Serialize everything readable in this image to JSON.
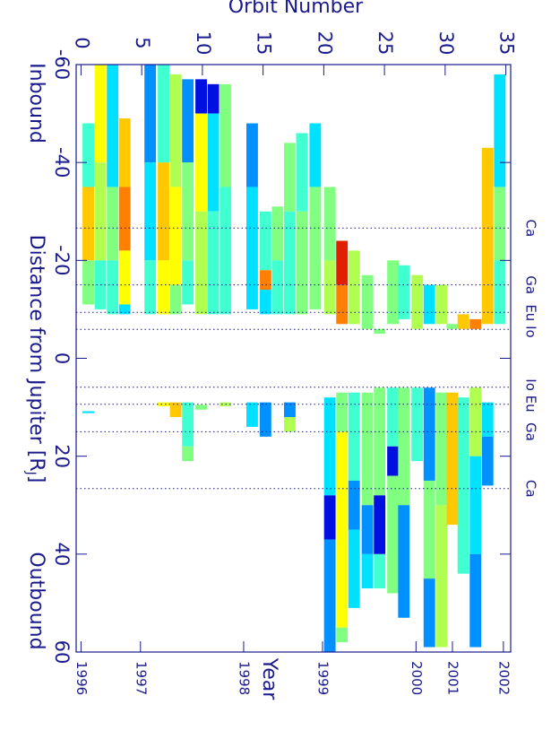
{
  "chart_data": {
    "type": "heatmap",
    "xlabel": "Orbit Number",
    "year_label": "Year",
    "ylabel": "Distance from Jupiter [R",
    "ylabel_sub": "J",
    "ylabel_end": "]",
    "inbound_label": "Inbound",
    "outbound_label": "Outbound",
    "xlim": [
      -0.4,
      35.4
    ],
    "xticks": [
      0,
      5,
      10,
      15,
      20,
      25,
      30,
      35
    ],
    "ylim": [
      -60,
      60
    ],
    "yticks": [
      -60,
      -40,
      -20,
      0,
      20,
      40,
      60
    ],
    "year_ticks": [
      {
        "value": 0,
        "label": "1996"
      },
      {
        "value": 4.9,
        "label": "1997"
      },
      {
        "value": 13.4,
        "label": "1998"
      },
      {
        "value": 19.9,
        "label": "1999"
      },
      {
        "value": 27.6,
        "label": "2000"
      },
      {
        "value": 30.6,
        "label": "2001"
      },
      {
        "value": 34.8,
        "label": "2002"
      }
    ],
    "moon_lines": [
      -26.6,
      -15,
      -9.4,
      -5.9,
      5.9,
      9.4,
      15,
      26.6
    ],
    "moon_labels": [
      {
        "label": "Ca",
        "value": -26.6
      },
      {
        "label": "Ga",
        "value": -15
      },
      {
        "label": "Eu Io",
        "value": -7.6
      },
      {
        "label": "Io Eu",
        "value": 7.6
      },
      {
        "label": "Ga",
        "value": 15
      },
      {
        "label": "Ca",
        "value": 26.6
      }
    ],
    "column_width": 0.95,
    "columns": [
      {
        "orbit": 0.6,
        "segments": [
          {
            "from": -48,
            "to": -35,
            "color": "#40ffd0"
          },
          {
            "from": -35,
            "to": -20,
            "color": "#ffc800"
          },
          {
            "from": -20,
            "to": -11,
            "color": "#80ff80"
          },
          {
            "from": 10.8,
            "to": 11.2,
            "color": "#00e0ff"
          }
        ]
      },
      {
        "orbit": 1.6,
        "segments": [
          {
            "from": -60,
            "to": -40,
            "color": "#ffff00"
          },
          {
            "from": -40,
            "to": -20,
            "color": "#b0ff50"
          },
          {
            "from": -20,
            "to": -10,
            "color": "#40ffd0"
          }
        ]
      },
      {
        "orbit": 2.6,
        "segments": [
          {
            "from": -60,
            "to": -35,
            "color": "#00e0ff"
          },
          {
            "from": -35,
            "to": -20,
            "color": "#80ff80"
          },
          {
            "from": -20,
            "to": -9,
            "color": "#40ffd0"
          }
        ]
      },
      {
        "orbit": 3.6,
        "segments": [
          {
            "from": -49,
            "to": -35,
            "color": "#ffc800"
          },
          {
            "from": -35,
            "to": -22,
            "color": "#ff8000"
          },
          {
            "from": -22,
            "to": -11,
            "color": "#ffff00"
          },
          {
            "from": -11,
            "to": -9,
            "color": "#00e0ff"
          }
        ]
      },
      {
        "orbit": 5.7,
        "segments": [
          {
            "from": -60,
            "to": -40,
            "color": "#0090ff"
          },
          {
            "from": -40,
            "to": -20,
            "color": "#00e0ff"
          },
          {
            "from": -20,
            "to": -9,
            "color": "#40ffd0"
          }
        ]
      },
      {
        "orbit": 6.8,
        "segments": [
          {
            "from": -60,
            "to": -40,
            "color": "#40ffd0"
          },
          {
            "from": -40,
            "to": -20,
            "color": "#ffc800"
          },
          {
            "from": -20,
            "to": -9,
            "color": "#ffff00"
          },
          {
            "from": 9,
            "to": 9.8,
            "color": "#ffff00"
          }
        ]
      },
      {
        "orbit": 7.8,
        "segments": [
          {
            "from": -58,
            "to": -35,
            "color": "#b0ff50"
          },
          {
            "from": -35,
            "to": -15,
            "color": "#ffff00"
          },
          {
            "from": -15,
            "to": -9,
            "color": "#80ff80"
          },
          {
            "from": 9,
            "to": 12,
            "color": "#ffc800"
          }
        ]
      },
      {
        "orbit": 8.8,
        "segments": [
          {
            "from": -57,
            "to": -40,
            "color": "#0090ff"
          },
          {
            "from": -40,
            "to": -20,
            "color": "#80ff80"
          },
          {
            "from": -20,
            "to": -11,
            "color": "#40ffd0"
          },
          {
            "from": 9,
            "to": 18,
            "color": "#40ffd0"
          },
          {
            "from": 18,
            "to": 21,
            "color": "#80ff80"
          }
        ]
      },
      {
        "orbit": 9.9,
        "segments": [
          {
            "from": -57,
            "to": -50,
            "color": "#0010e0"
          },
          {
            "from": -50,
            "to": -30,
            "color": "#ffff00"
          },
          {
            "from": -30,
            "to": -9,
            "color": "#b0ff50"
          },
          {
            "from": 9.5,
            "to": 10.5,
            "color": "#80ff80"
          }
        ]
      },
      {
        "orbit": 10.9,
        "segments": [
          {
            "from": -56,
            "to": -50,
            "color": "#0010e0"
          },
          {
            "from": -50,
            "to": -30,
            "color": "#00e0ff"
          },
          {
            "from": -30,
            "to": -9,
            "color": "#40ffd0"
          }
        ]
      },
      {
        "orbit": 11.9,
        "segments": [
          {
            "from": -56,
            "to": -35,
            "color": "#80ff80"
          },
          {
            "from": -35,
            "to": -9,
            "color": "#40ffd0"
          },
          {
            "from": 9,
            "to": 9.8,
            "color": "#b0ff50"
          }
        ]
      },
      {
        "orbit": 14.1,
        "segments": [
          {
            "from": -48,
            "to": -35,
            "color": "#0090ff"
          },
          {
            "from": -35,
            "to": -10,
            "color": "#00e0ff"
          },
          {
            "from": 9,
            "to": 14,
            "color": "#00e0ff"
          }
        ]
      },
      {
        "orbit": 15.2,
        "segments": [
          {
            "from": -30,
            "to": -18,
            "color": "#40ffd0"
          },
          {
            "from": -18,
            "to": -14,
            "color": "#ff8000"
          },
          {
            "from": -14,
            "to": -9,
            "color": "#00e0ff"
          },
          {
            "from": 9,
            "to": 16,
            "color": "#0090ff"
          }
        ]
      },
      {
        "orbit": 16.2,
        "segments": [
          {
            "from": -31,
            "to": -20,
            "color": "#80ff80"
          },
          {
            "from": -20,
            "to": -9,
            "color": "#40ffd0"
          }
        ]
      },
      {
        "orbit": 17.2,
        "segments": [
          {
            "from": -44,
            "to": -30,
            "color": "#80ff80"
          },
          {
            "from": -30,
            "to": -9,
            "color": "#40ffd0"
          },
          {
            "from": 9,
            "to": 12,
            "color": "#0090ff"
          },
          {
            "from": 12,
            "to": 15,
            "color": "#b0ff50"
          }
        ]
      },
      {
        "orbit": 18.2,
        "segments": [
          {
            "from": -46,
            "to": -30,
            "color": "#40ffd0"
          },
          {
            "from": -30,
            "to": -9,
            "color": "#80ff80"
          }
        ]
      },
      {
        "orbit": 19.3,
        "segments": [
          {
            "from": -48,
            "to": -35,
            "color": "#00e0ff"
          },
          {
            "from": -35,
            "to": -10,
            "color": "#80ff80"
          }
        ]
      },
      {
        "orbit": 20.5,
        "segments": [
          {
            "from": -35,
            "to": -20,
            "color": "#80ff80"
          },
          {
            "from": -20,
            "to": -9,
            "color": "#b0ff50"
          },
          {
            "from": 8,
            "to": 28,
            "color": "#00e0ff"
          },
          {
            "from": 28,
            "to": 37,
            "color": "#0010e0"
          },
          {
            "from": 37,
            "to": 60,
            "color": "#0090ff"
          }
        ]
      },
      {
        "orbit": 21.5,
        "segments": [
          {
            "from": -24,
            "to": -15,
            "color": "#e02000"
          },
          {
            "from": -15,
            "to": -7,
            "color": "#ff8000"
          },
          {
            "from": 7,
            "to": 15,
            "color": "#80ff80"
          },
          {
            "from": 15,
            "to": 55,
            "color": "#ffff00"
          },
          {
            "from": 55,
            "to": 58,
            "color": "#80ff80"
          }
        ]
      },
      {
        "orbit": 22.5,
        "segments": [
          {
            "from": -22,
            "to": -7,
            "color": "#b0ff50"
          },
          {
            "from": 7,
            "to": 25,
            "color": "#40ffd0"
          },
          {
            "from": 25,
            "to": 35,
            "color": "#0090ff"
          },
          {
            "from": 35,
            "to": 51,
            "color": "#00e0ff"
          }
        ]
      },
      {
        "orbit": 23.6,
        "segments": [
          {
            "from": -17,
            "to": -6,
            "color": "#80ff80"
          },
          {
            "from": 7,
            "to": 30,
            "color": "#80ff80"
          },
          {
            "from": 30,
            "to": 40,
            "color": "#0090ff"
          },
          {
            "from": 40,
            "to": 47,
            "color": "#00e0ff"
          }
        ]
      },
      {
        "orbit": 24.6,
        "segments": [
          {
            "from": -6,
            "to": -5,
            "color": "#80ff80"
          },
          {
            "from": 6,
            "to": 28,
            "color": "#80ff80"
          },
          {
            "from": 28,
            "to": 40,
            "color": "#0010e0"
          },
          {
            "from": 40,
            "to": 47,
            "color": "#40ffd0"
          }
        ]
      },
      {
        "orbit": 25.7,
        "segments": [
          {
            "from": -20,
            "to": -7,
            "color": "#80ff80"
          },
          {
            "from": 6,
            "to": 18,
            "color": "#40ffd0"
          },
          {
            "from": 18,
            "to": 24,
            "color": "#0010e0"
          },
          {
            "from": 24,
            "to": 48,
            "color": "#80ff80"
          }
        ]
      },
      {
        "orbit": 26.6,
        "segments": [
          {
            "from": -19,
            "to": -8,
            "color": "#40ffd0"
          },
          {
            "from": 6,
            "to": 30,
            "color": "#80ff80"
          },
          {
            "from": 30,
            "to": 53,
            "color": "#0090ff"
          }
        ]
      },
      {
        "orbit": 27.7,
        "segments": [
          {
            "from": -17,
            "to": -6,
            "color": "#b0ff50"
          },
          {
            "from": 6,
            "to": 21,
            "color": "#40ffd0"
          }
        ]
      },
      {
        "orbit": 28.7,
        "segments": [
          {
            "from": -15,
            "to": -7,
            "color": "#00e0ff"
          },
          {
            "from": 6,
            "to": 25,
            "color": "#0090ff"
          },
          {
            "from": 25,
            "to": 45,
            "color": "#80ff80"
          },
          {
            "from": 45,
            "to": 59,
            "color": "#0090ff"
          }
        ]
      },
      {
        "orbit": 29.7,
        "segments": [
          {
            "from": -15,
            "to": -7,
            "color": "#b0ff50"
          },
          {
            "from": 7,
            "to": 30,
            "color": "#80ff80"
          },
          {
            "from": 30,
            "to": 59,
            "color": "#b0ff50"
          }
        ]
      },
      {
        "orbit": 30.6,
        "segments": [
          {
            "from": -7,
            "to": -6,
            "color": "#80ff80"
          },
          {
            "from": 7,
            "to": 34,
            "color": "#ffc800"
          }
        ]
      },
      {
        "orbit": 31.5,
        "segments": [
          {
            "from": -9,
            "to": -6,
            "color": "#ffc800"
          },
          {
            "from": 8,
            "to": 44,
            "color": "#40ffd0"
          }
        ]
      },
      {
        "orbit": 32.5,
        "segments": [
          {
            "from": -8,
            "to": -6,
            "color": "#ff8000"
          },
          {
            "from": 6,
            "to": 20,
            "color": "#b0ff50"
          },
          {
            "from": 20,
            "to": 40,
            "color": "#00e0ff"
          },
          {
            "from": 40,
            "to": 59,
            "color": "#0090ff"
          }
        ]
      },
      {
        "orbit": 33.5,
        "segments": [
          {
            "from": -43,
            "to": -7,
            "color": "#ffc800"
          },
          {
            "from": 9,
            "to": 16,
            "color": "#00e0ff"
          },
          {
            "from": 16,
            "to": 26,
            "color": "#0090ff"
          }
        ]
      },
      {
        "orbit": 34.5,
        "segments": [
          {
            "from": -58,
            "to": -35,
            "color": "#00e0ff"
          },
          {
            "from": -35,
            "to": -20,
            "color": "#80ff80"
          },
          {
            "from": -20,
            "to": -7,
            "color": "#40ffd0"
          }
        ]
      }
    ]
  }
}
